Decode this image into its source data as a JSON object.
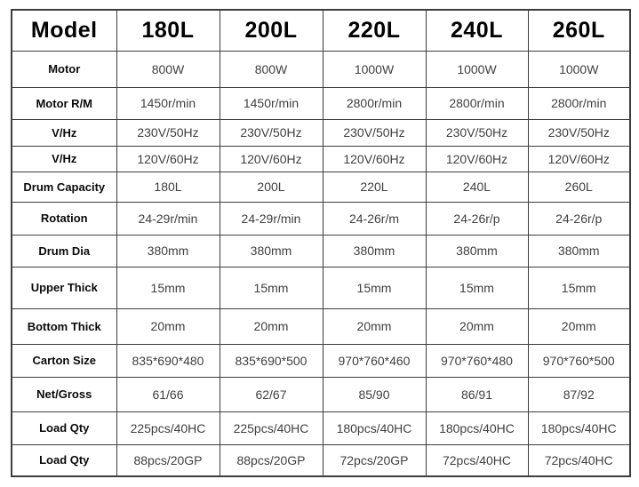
{
  "colors": {
    "background": "#ffffff",
    "border": "#3d3d3d",
    "header_text": "#000000",
    "label_text": "#0a0a0a",
    "value_text": "#404040"
  },
  "chart_data": {
    "type": "table",
    "columns": [
      "Model",
      "180L",
      "200L",
      "220L",
      "240L",
      "260L"
    ],
    "rows": [
      {
        "label": "Motor",
        "values": [
          "800W",
          "800W",
          "1000W",
          "1000W",
          "1000W"
        ]
      },
      {
        "label": "Motor R/M",
        "values": [
          "1450r/min",
          "1450r/min",
          "2800r/min",
          "2800r/min",
          "2800r/min"
        ]
      },
      {
        "label": "V/Hz",
        "values": [
          "230V/50Hz",
          "230V/50Hz",
          "230V/50Hz",
          "230V/50Hz",
          "230V/50Hz"
        ]
      },
      {
        "label": "V/Hz",
        "values": [
          "120V/60Hz",
          "120V/60Hz",
          "120V/60Hz",
          "120V/60Hz",
          "120V/60Hz"
        ]
      },
      {
        "label": "Drum Capacity",
        "values": [
          "180L",
          "200L",
          "220L",
          "240L",
          "260L"
        ]
      },
      {
        "label": "Rotation",
        "values": [
          "24-29r/min",
          "24-29r/min",
          "24-26r/m",
          "24-26r/p",
          "24-26r/p"
        ]
      },
      {
        "label": "Drum Dia",
        "values": [
          "380mm",
          "380mm",
          "380mm",
          "380mm",
          "380mm"
        ]
      },
      {
        "label": "Upper Thick",
        "values": [
          "15mm",
          "15mm",
          "15mm",
          "15mm",
          "15mm"
        ]
      },
      {
        "label": "Bottom Thick",
        "values": [
          "20mm",
          "20mm",
          "20mm",
          "20mm",
          "20mm"
        ]
      },
      {
        "label": "Carton Size",
        "values": [
          "835*690*480",
          "835*690*500",
          "970*760*460",
          "970*760*480",
          "970*760*500"
        ]
      },
      {
        "label": "Net/Gross",
        "values": [
          "61/66",
          "62/67",
          "85/90",
          "86/91",
          "87/92"
        ]
      },
      {
        "label": "Load Qty",
        "values": [
          "225pcs/40HC",
          "225pcs/40HC",
          "180pcs/40HC",
          "180pcs/40HC",
          "180pcs/40HC"
        ]
      },
      {
        "label": "Load Qty",
        "values": [
          "88pcs/20GP",
          "88pcs/20GP",
          "72pcs/20GP",
          "72pcs/40HC",
          "72pcs/40HC"
        ]
      }
    ]
  }
}
